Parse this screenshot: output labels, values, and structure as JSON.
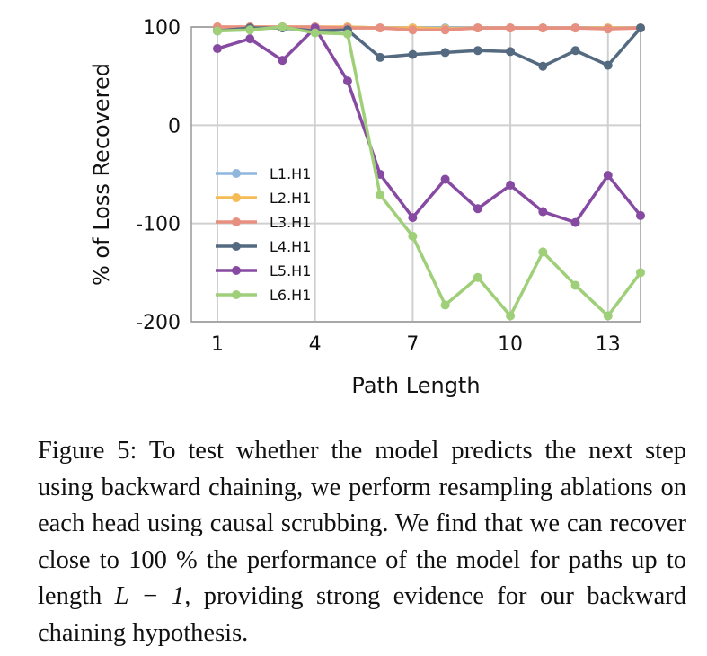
{
  "chart_data": {
    "type": "line",
    "title": "",
    "xlabel": "Path Length",
    "ylabel": "% of Loss Recovered",
    "xlim": [
      0.2,
      14
    ],
    "ylim": [
      -200,
      100
    ],
    "xticks": [
      1,
      4,
      7,
      10,
      13
    ],
    "yticks": [
      -200,
      -100,
      0,
      100
    ],
    "grid": true,
    "legend_position": "center-left",
    "x": [
      1,
      2,
      3,
      4,
      5,
      6,
      7,
      8,
      9,
      10,
      11,
      12,
      13,
      14
    ],
    "series": [
      {
        "name": "L1.H1",
        "color": "#8fb6dd",
        "values": [
          97,
          99,
          100,
          99,
          100,
          99,
          99,
          99,
          99,
          99,
          99,
          99,
          99,
          99
        ]
      },
      {
        "name": "L2.H1",
        "color": "#f5bc55",
        "values": [
          100,
          100,
          100,
          100,
          100,
          99,
          99,
          98,
          99,
          99,
          99,
          99,
          99,
          99
        ]
      },
      {
        "name": "L3.H1",
        "color": "#e78f80",
        "values": [
          100,
          100,
          100,
          100,
          99,
          99,
          97,
          97,
          99,
          99,
          99,
          99,
          98,
          99
        ]
      },
      {
        "name": "L4.H1",
        "color": "#546a80",
        "values": [
          96,
          99,
          99,
          96,
          97,
          69,
          72,
          74,
          76,
          75,
          60,
          76,
          61,
          99
        ]
      },
      {
        "name": "L5.H1",
        "color": "#874aa2",
        "values": [
          78,
          88,
          66,
          99,
          45,
          -50,
          -94,
          -55,
          -85,
          -61,
          -88,
          -99,
          -51,
          -92
        ]
      },
      {
        "name": "L6.H1",
        "color": "#9fcf78",
        "values": [
          96,
          97,
          100,
          94,
          93,
          -71,
          -113,
          -183,
          -155,
          -194,
          -129,
          -163,
          -194,
          -150
        ]
      }
    ]
  },
  "caption": {
    "text": "Figure 5: To test whether the model predicts the next step using backward chaining, we perform resampling ablations on each head using causal scrubbing. We find that we can recover close to 100 % the performance of the model for paths up to length ",
    "math": "L − 1",
    "text_after": ", providing strong evidence for our backward chaining hypothesis."
  }
}
